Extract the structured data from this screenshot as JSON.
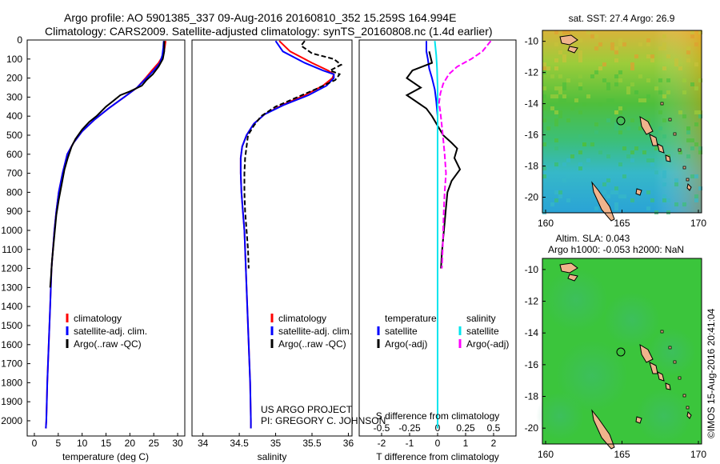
{
  "header": {
    "line1": "Argo profile: AO 5901385_337 09-Aug-2016 20160810_352 15.259S 164.994E",
    "line2": "Climatology: CARS2009. Satellite-adjusted climatology: synTS_20160808.nc (1.4d earlier)"
  },
  "side_label": "©IMOS 15-Aug-2016 20:41:04",
  "credit": {
    "line1": "US ARGO PROJECT",
    "line2": "PI: GREGORY C. JOHNSON"
  },
  "colors": {
    "climatology": "#ff0000",
    "satellite": "#0000ff",
    "argo": "#000000",
    "sal_satellite": "#00e5ee",
    "sal_argo": "#ff00ff",
    "land": "#f0b48c"
  },
  "depth_axis": {
    "ticks": [
      0,
      100,
      200,
      300,
      400,
      500,
      600,
      700,
      800,
      900,
      1000,
      1100,
      1200,
      1300,
      1400,
      1500,
      1600,
      1700,
      1800,
      1900,
      2000
    ],
    "ylim": [
      0,
      2080
    ],
    "reversed": true
  },
  "chart_data": [
    {
      "type": "line",
      "panel": "temperature",
      "xlabel": "temperature (deg C)",
      "xticks": [
        "0",
        "5",
        "10",
        "15",
        "20",
        "25",
        "30"
      ],
      "xlim": [
        -1.5,
        31.5
      ],
      "legend": [
        "climatology",
        "satellite-adj. clim.",
        "Argo(..raw -QC)"
      ],
      "legend_placement": "lower-left",
      "series": [
        {
          "name": "climatology",
          "color_key": "climatology",
          "points": [
            [
              27.5,
              5
            ],
            [
              27.3,
              40
            ],
            [
              27.0,
              80
            ],
            [
              26.0,
              120
            ],
            [
              24.6,
              160
            ],
            [
              23.3,
              200
            ],
            [
              21.5,
              250
            ],
            [
              18.8,
              300
            ],
            [
              15.5,
              360
            ],
            [
              12.5,
              420
            ],
            [
              10.0,
              480
            ],
            [
              8.2,
              540
            ],
            [
              6.9,
              600
            ],
            [
              5.9,
              700
            ],
            [
              5.1,
              800
            ],
            [
              4.6,
              900
            ],
            [
              4.2,
              1000
            ],
            [
              3.9,
              1100
            ],
            [
              3.6,
              1200
            ],
            [
              3.3,
              1400
            ],
            [
              3.0,
              1600
            ],
            [
              2.7,
              1800
            ],
            [
              2.5,
              2000
            ],
            [
              2.4,
              2040
            ]
          ]
        },
        {
          "name": "satellite-adj. clim.",
          "color_key": "satellite",
          "points": [
            [
              27.1,
              5
            ],
            [
              27.0,
              40
            ],
            [
              26.8,
              80
            ],
            [
              26.3,
              120
            ],
            [
              25.0,
              160
            ],
            [
              23.5,
              200
            ],
            [
              21.5,
              250
            ],
            [
              18.8,
              300
            ],
            [
              15.5,
              360
            ],
            [
              12.5,
              420
            ],
            [
              10.0,
              480
            ],
            [
              8.2,
              540
            ],
            [
              6.9,
              600
            ],
            [
              5.9,
              700
            ],
            [
              5.1,
              800
            ],
            [
              4.6,
              900
            ],
            [
              4.2,
              1000
            ],
            [
              3.9,
              1100
            ],
            [
              3.6,
              1200
            ],
            [
              3.3,
              1400
            ],
            [
              3.0,
              1600
            ],
            [
              2.7,
              1800
            ],
            [
              2.5,
              2000
            ],
            [
              2.4,
              2040
            ]
          ]
        },
        {
          "name": "Argo(..raw -QC)",
          "color_key": "argo",
          "points": [
            [
              27.2,
              5
            ],
            [
              27.2,
              60
            ],
            [
              26.9,
              100
            ],
            [
              26.0,
              140
            ],
            [
              24.8,
              180
            ],
            [
              23.5,
              210
            ],
            [
              22.5,
              240
            ],
            [
              20.0,
              270
            ],
            [
              18.0,
              290
            ],
            [
              16.5,
              320
            ],
            [
              15.0,
              350
            ],
            [
              13.0,
              400
            ],
            [
              11.5,
              430
            ],
            [
              10.0,
              470
            ],
            [
              8.6,
              520
            ],
            [
              7.8,
              560
            ],
            [
              7.0,
              620
            ],
            [
              6.3,
              680
            ],
            [
              5.7,
              760
            ],
            [
              5.1,
              840
            ],
            [
              4.6,
              920
            ],
            [
              4.3,
              1000
            ],
            [
              4.0,
              1080
            ],
            [
              3.7,
              1160
            ],
            [
              3.5,
              1240
            ],
            [
              3.3,
              1300
            ]
          ]
        }
      ]
    },
    {
      "type": "line",
      "panel": "salinity",
      "xlabel": "salinity",
      "xticks": [
        "34",
        "34.5",
        "35",
        "35.5",
        "36"
      ],
      "xlim": [
        33.85,
        36.05
      ],
      "legend": [
        "climatology",
        "satellite-adj. clim.",
        "Argo(..raw -QC)"
      ],
      "legend_placement": "lower-right",
      "series": [
        {
          "name": "climatology",
          "color_key": "climatology",
          "points": [
            [
              35.05,
              5
            ],
            [
              35.2,
              60
            ],
            [
              35.5,
              120
            ],
            [
              35.72,
              160
            ],
            [
              35.8,
              180
            ],
            [
              35.78,
              200
            ],
            [
              35.65,
              240
            ],
            [
              35.4,
              290
            ],
            [
              35.1,
              340
            ],
            [
              34.85,
              390
            ],
            [
              34.7,
              440
            ],
            [
              34.6,
              500
            ],
            [
              34.54,
              560
            ],
            [
              34.52,
              620
            ],
            [
              34.52,
              700
            ],
            [
              34.53,
              800
            ],
            [
              34.55,
              900
            ],
            [
              34.57,
              1000
            ],
            [
              34.59,
              1200
            ],
            [
              34.61,
              1400
            ],
            [
              34.63,
              1600
            ],
            [
              34.65,
              1800
            ],
            [
              34.66,
              2000
            ],
            [
              34.66,
              2040
            ]
          ]
        },
        {
          "name": "satellite-adj. clim.",
          "color_key": "satellite",
          "points": [
            [
              35.0,
              5
            ],
            [
              35.1,
              60
            ],
            [
              35.4,
              120
            ],
            [
              35.65,
              160
            ],
            [
              35.8,
              180
            ],
            [
              35.8,
              200
            ],
            [
              35.7,
              240
            ],
            [
              35.45,
              290
            ],
            [
              35.12,
              340
            ],
            [
              34.85,
              390
            ],
            [
              34.7,
              440
            ],
            [
              34.6,
              500
            ],
            [
              34.54,
              560
            ],
            [
              34.52,
              620
            ],
            [
              34.52,
              700
            ],
            [
              34.53,
              800
            ],
            [
              34.55,
              900
            ],
            [
              34.57,
              1000
            ],
            [
              34.59,
              1200
            ],
            [
              34.61,
              1400
            ],
            [
              34.63,
              1600
            ],
            [
              34.65,
              1800
            ],
            [
              34.66,
              2000
            ],
            [
              34.66,
              2040
            ]
          ]
        },
        {
          "name": "Argo(..raw -QC)",
          "color_key": "argo",
          "points": [
            [
              35.4,
              5
            ],
            [
              35.35,
              30
            ],
            [
              35.5,
              70
            ],
            [
              35.8,
              100
            ],
            [
              35.9,
              130
            ],
            [
              35.75,
              160
            ],
            [
              35.88,
              180
            ],
            [
              35.82,
              210
            ],
            [
              35.6,
              250
            ],
            [
              35.3,
              300
            ],
            [
              35.0,
              350
            ],
            [
              34.8,
              400
            ],
            [
              34.7,
              450
            ],
            [
              34.62,
              500
            ],
            [
              34.6,
              560
            ],
            [
              34.58,
              620
            ],
            [
              34.57,
              700
            ],
            [
              34.57,
              800
            ],
            [
              34.58,
              900
            ],
            [
              34.6,
              1000
            ],
            [
              34.62,
              1100
            ],
            [
              34.63,
              1200
            ]
          ]
        }
      ]
    },
    {
      "type": "line",
      "panel": "difference",
      "xlabel_bottom": "T difference from climatology",
      "xlabel_top": "S difference from climatology",
      "xticks": [
        "-2",
        "-1",
        "0",
        "1",
        "2"
      ],
      "xticks_top": [
        "-0.5",
        "-0.25",
        "0",
        "0.25",
        "0.5"
      ],
      "xlim": [
        -2.8,
        2.8
      ],
      "legend_titles": [
        "temperature",
        "salinity"
      ],
      "legend": [
        "satellite",
        "Argo(-adj)",
        "satellite",
        "Argo(-adj)"
      ],
      "series": [
        {
          "name": "satellite",
          "color_key": "satellite",
          "points": [
            [
              -0.4,
              5
            ],
            [
              -0.4,
              60
            ],
            [
              -0.35,
              100
            ],
            [
              -0.3,
              150
            ],
            [
              -0.2,
              200
            ],
            [
              -0.1,
              260
            ],
            [
              -0.05,
              320
            ],
            [
              0.0,
              400
            ],
            [
              0.0,
              600
            ],
            [
              0.0,
              1000
            ],
            [
              0.0,
              2040
            ]
          ]
        },
        {
          "name": "Argo(-adj)",
          "color_key": "argo",
          "points": [
            [
              -0.3,
              60
            ],
            [
              -0.2,
              120
            ],
            [
              -0.9,
              160
            ],
            [
              -1.1,
              200
            ],
            [
              -0.6,
              250
            ],
            [
              -1.1,
              290
            ],
            [
              -0.7,
              330
            ],
            [
              -0.4,
              360
            ],
            [
              -0.2,
              400
            ],
            [
              0.0,
              450
            ],
            [
              0.2,
              500
            ],
            [
              0.5,
              540
            ],
            [
              0.7,
              570
            ],
            [
              0.6,
              620
            ],
            [
              0.8,
              680
            ],
            [
              0.5,
              740
            ],
            [
              0.35,
              800
            ],
            [
              0.3,
              880
            ],
            [
              0.25,
              960
            ],
            [
              0.2,
              1040
            ],
            [
              0.15,
              1120
            ],
            [
              0.12,
              1200
            ]
          ]
        },
        {
          "name": "satellite",
          "color_key": "sal_satellite",
          "points": [
            [
              -0.1,
              5
            ],
            [
              -0.05,
              80
            ],
            [
              -0.02,
              150
            ],
            [
              0.0,
              250
            ],
            [
              0.0,
              400
            ],
            [
              0.0,
              700
            ],
            [
              0.0,
              1000
            ],
            [
              0.0,
              2040
            ]
          ]
        },
        {
          "name": "Argo(-adj)",
          "color_key": "sal_argo",
          "points": [
            [
              1.9,
              5
            ],
            [
              1.6,
              60
            ],
            [
              1.2,
              100
            ],
            [
              0.7,
              140
            ],
            [
              0.4,
              180
            ],
            [
              0.2,
              230
            ],
            [
              0.1,
              280
            ],
            [
              0.05,
              330
            ],
            [
              0.1,
              380
            ],
            [
              0.15,
              450
            ],
            [
              0.2,
              520
            ],
            [
              0.25,
              600
            ],
            [
              0.3,
              700
            ],
            [
              0.25,
              800
            ],
            [
              0.22,
              900
            ],
            [
              0.2,
              1000
            ],
            [
              0.18,
              1100
            ],
            [
              0.15,
              1200
            ]
          ]
        }
      ]
    }
  ],
  "maps": [
    {
      "title": "sat. SST: 27.4 Argo: 26.9",
      "title_lines": [
        "sat. SST: 27.4 Argo: 26.9"
      ],
      "lat_ticks": [
        "-10",
        "-12",
        "-14",
        "-16",
        "-18",
        "-20"
      ],
      "lon_ticks": [
        "160",
        "165",
        "170"
      ],
      "variable": "SST"
    },
    {
      "title": "Altim. SLA: 0.043",
      "title_lines": [
        "Altim. SLA: 0.043",
        "Argo h1000: -0.053 h2000: NaN"
      ],
      "lat_ticks": [
        "-10",
        "-12",
        "-14",
        "-16",
        "-18",
        "-20"
      ],
      "lon_ticks": [
        "160",
        "165",
        "170"
      ],
      "variable": "SLA"
    }
  ]
}
